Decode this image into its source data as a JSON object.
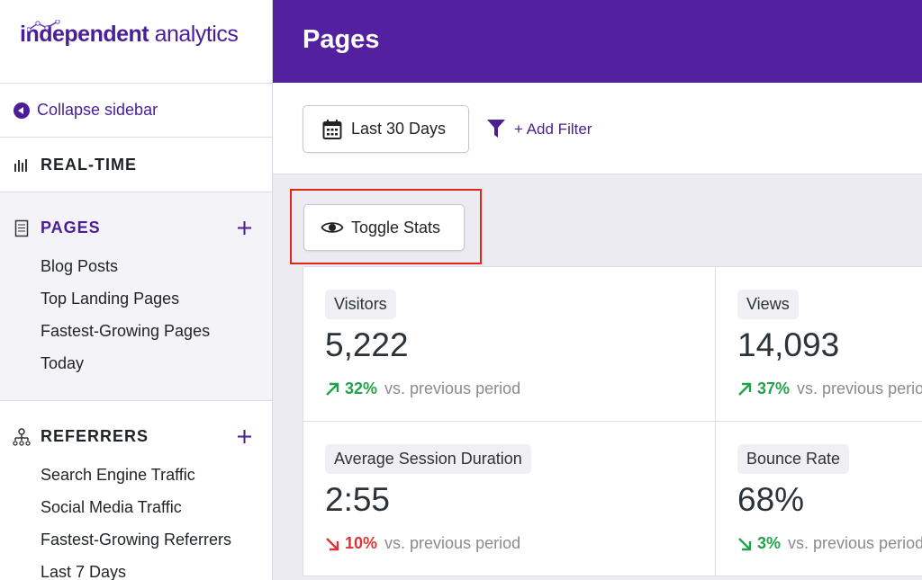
{
  "logo": {
    "brand": "independent",
    "product": "analytics"
  },
  "sidebar": {
    "collapse": "Collapse sidebar",
    "sections": [
      {
        "label": "REAL-TIME",
        "items": []
      },
      {
        "label": "PAGES",
        "items": [
          "Blog Posts",
          "Top Landing Pages",
          "Fastest-Growing Pages",
          "Today"
        ]
      },
      {
        "label": "REFERRERS",
        "items": [
          "Search Engine Traffic",
          "Social Media Traffic",
          "Fastest-Growing Referrers",
          "Last 7 Days"
        ]
      }
    ]
  },
  "header": {
    "title": "Pages"
  },
  "toolbar": {
    "date_range": "Last 30 Days",
    "add_filter": "+ Add Filter"
  },
  "toggle": "Toggle Stats",
  "stats": [
    {
      "label": "Visitors",
      "value": "5,222",
      "change": "32%",
      "trend": "up",
      "color": "#22a24a",
      "comparison": "vs. previous period"
    },
    {
      "label": "Views",
      "value": "14,093",
      "change": "37%",
      "trend": "up",
      "color": "#22a24a",
      "comparison": "vs. previous period"
    },
    {
      "label": "Average Session Duration",
      "value": "2:55",
      "change": "10%",
      "trend": "down",
      "color": "#d63638",
      "comparison": "vs. previous period"
    },
    {
      "label": "Bounce Rate",
      "value": "68%",
      "change": "3%",
      "trend": "down",
      "color": "#22a24a",
      "comparison": "vs. previous period"
    }
  ]
}
